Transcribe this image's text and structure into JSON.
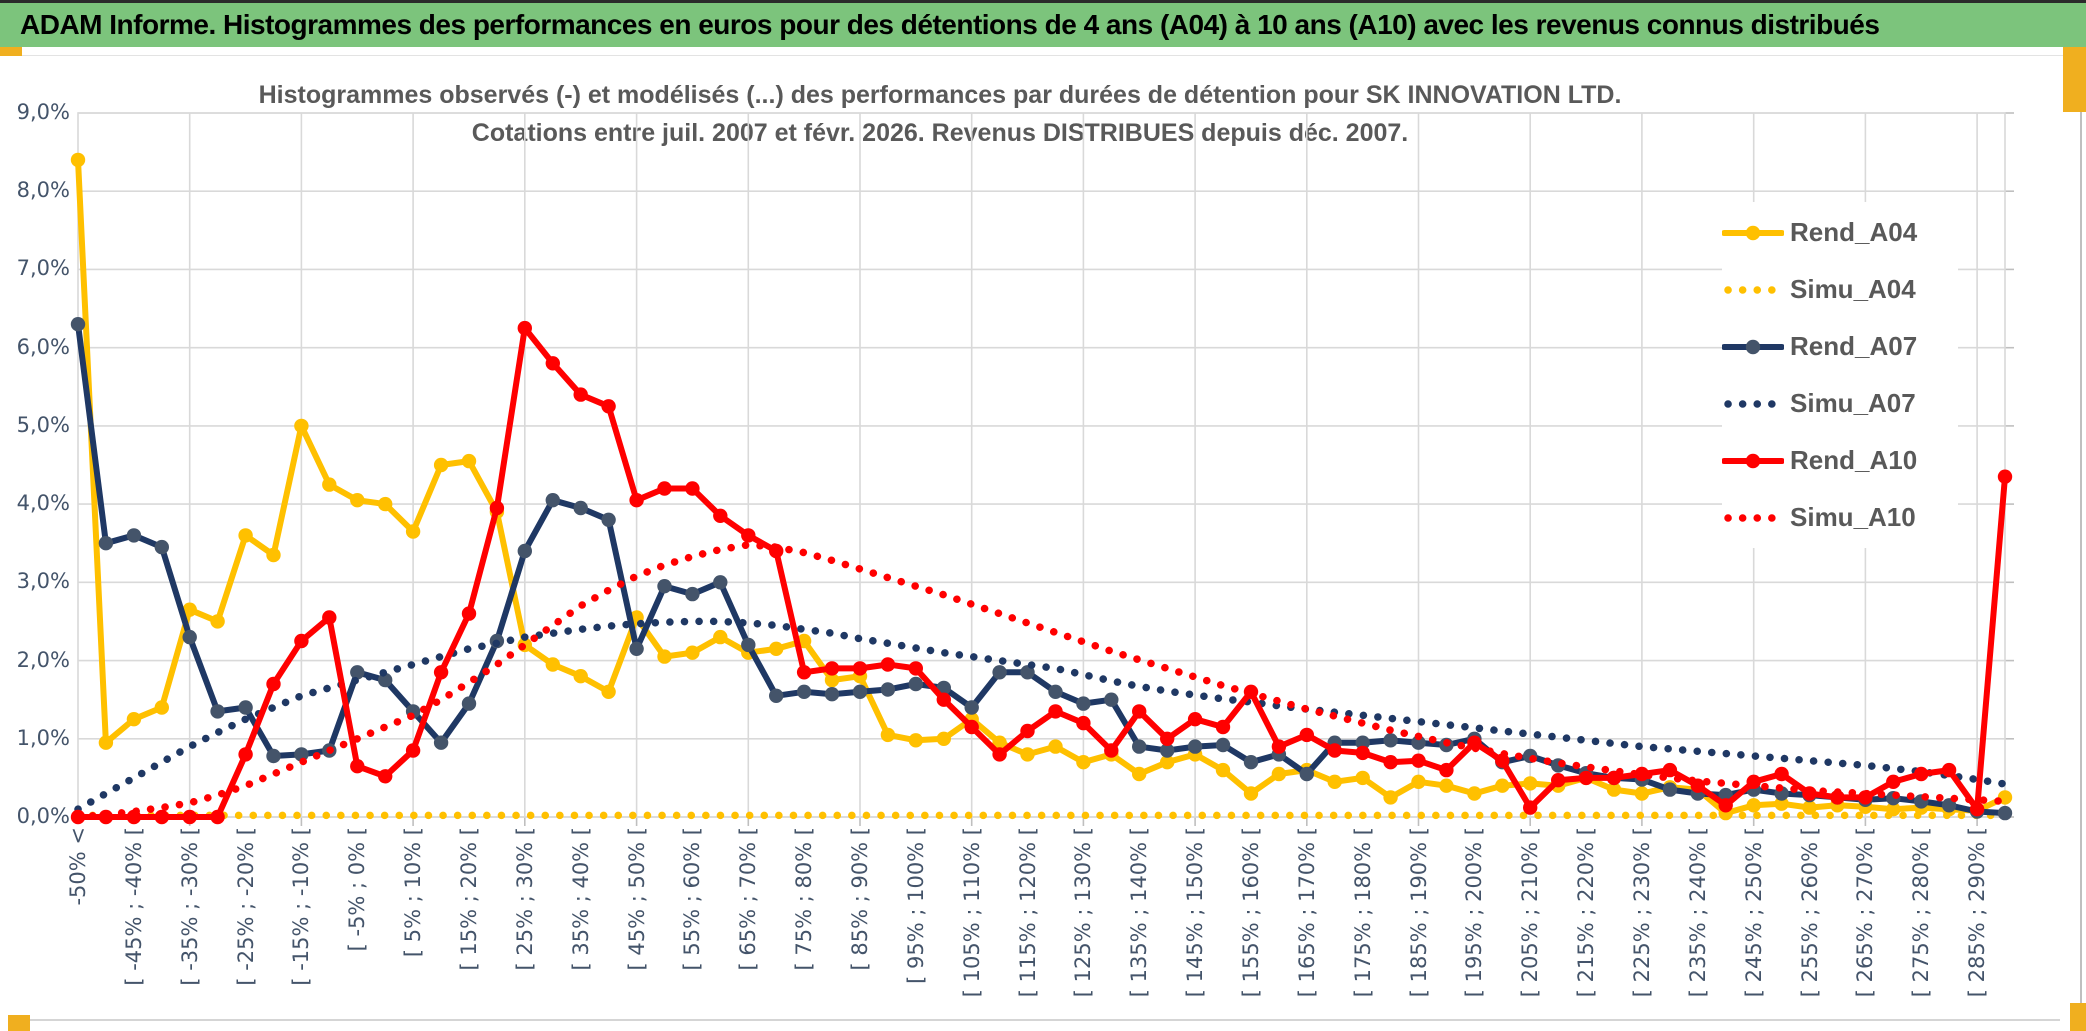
{
  "header": {
    "title": "ADAM Informe. Histogrammes des performances en euros pour des détentions de 4 ans (A04) à 10 ans (A10) avec les revenus connus distribués",
    "bg_color": "#7CC47C"
  },
  "accent_color": "#F0AF1F",
  "chart_data": {
    "type": "line",
    "title_line1": "Histogrammes observés (-) et modélisés (...) des performances par durées de détention pour SK INNOVATION LTD.",
    "title_line2": "Cotations entre juil. 2007 et févr. 2026. Revenus DISTRIBUES depuis déc. 2007.",
    "ylim": [
      0,
      9
    ],
    "ytick_labels": [
      "0,0%",
      "1,0%",
      "2,0%",
      "3,0%",
      "4,0%",
      "5,0%",
      "6,0%",
      "7,0%",
      "8,0%",
      "9,0%"
    ],
    "grid_color": "#D9D9D9",
    "axis_label_color": "#44546A",
    "legend_position": "right-inside",
    "categories": [
      "-50% <",
      "",
      "[ -45% ; -40% [",
      "",
      "[ -35% ; -30% [",
      "",
      "[ -25% ; -20% [",
      "",
      "[ -15% ; -10% [",
      "",
      "[ -5% ; 0% [",
      "",
      "[ 5% ; 10% [",
      "",
      "[ 15% ; 20% [",
      "",
      "[ 25% ; 30% [",
      "",
      "[ 35% ; 40% [",
      "",
      "[ 45% ; 50% [",
      "",
      "[ 55% ; 60% [",
      "",
      "[ 65% ; 70% [",
      "",
      "[ 75% ; 80% [",
      "",
      "[ 85% ; 90% [",
      "",
      "[ 95% ; 100% [",
      "",
      "[ 105% ; 110% [",
      "",
      "[ 115% ; 120% [",
      "",
      "[ 125% ; 130% [",
      "",
      "[ 135% ; 140% [",
      "",
      "[ 145% ; 150% [",
      "",
      "[ 155% ; 160% [",
      "",
      "[ 165% ; 170% [",
      "",
      "[ 175% ; 180% [",
      "",
      "[ 185% ; 190% [",
      "",
      "[ 195% ; 200% [",
      "",
      "[ 205% ; 210% [",
      "",
      "[ 215% ; 220% [",
      "",
      "[ 225% ; 230% [",
      "",
      "[ 235% ; 240% [",
      "",
      "[ 245% ; 250% [",
      "",
      "[ 255% ; 260% [",
      "",
      "[ 265% ; 270% [",
      "",
      "[ 275% ; 280% [",
      "",
      "[ 285% ; 290% [",
      ""
    ],
    "series": [
      {
        "name": "Rend_A04",
        "color": "#FFC000",
        "style": "solid",
        "marker": true,
        "marker_color": "#FFC000",
        "values": [
          8.4,
          0.95,
          1.25,
          1.4,
          2.65,
          2.5,
          3.6,
          3.35,
          5.0,
          4.25,
          4.05,
          4.0,
          3.65,
          4.5,
          4.55,
          3.9,
          2.2,
          1.95,
          1.8,
          1.6,
          2.55,
          2.05,
          2.1,
          2.3,
          2.1,
          2.15,
          2.25,
          1.75,
          1.8,
          1.05,
          0.98,
          1.0,
          1.25,
          0.95,
          0.8,
          0.9,
          0.7,
          0.8,
          0.55,
          0.7,
          0.8,
          0.6,
          0.3,
          0.55,
          0.6,
          0.45,
          0.5,
          0.25,
          0.45,
          0.4,
          0.3,
          0.4,
          0.43,
          0.4,
          0.5,
          0.35,
          0.3,
          0.38,
          0.35,
          0.05,
          0.15,
          0.17,
          0.12,
          0.15,
          0.13,
          0.1,
          0.12,
          0.1,
          0.08,
          0.25
        ]
      },
      {
        "name": "Simu_A04",
        "color": "#FFC000",
        "style": "dotted",
        "marker": false,
        "values": [
          0.02,
          0.02,
          0.02,
          0.02,
          0.02,
          0.02,
          0.02,
          0.02,
          0.02,
          0.02,
          0.02,
          0.02,
          0.02,
          0.02,
          0.02,
          0.02,
          0.02,
          0.02,
          0.02,
          0.02,
          0.02,
          0.02,
          0.02,
          0.02,
          0.02,
          0.02,
          0.02,
          0.02,
          0.02,
          0.02,
          0.02,
          0.02,
          0.02,
          0.02,
          0.02,
          0.02,
          0.02,
          0.02,
          0.02,
          0.02,
          0.02,
          0.02,
          0.02,
          0.02,
          0.02,
          0.02,
          0.02,
          0.02,
          0.02,
          0.02,
          0.02,
          0.02,
          0.02,
          0.02,
          0.02,
          0.02,
          0.02,
          0.02,
          0.02,
          0.02,
          0.02,
          0.02,
          0.02,
          0.02,
          0.02,
          0.02,
          0.02,
          0.02,
          0.02,
          0.02
        ]
      },
      {
        "name": "Rend_A07",
        "color": "#1F3864",
        "style": "solid",
        "marker": true,
        "marker_color": "#44546A",
        "values": [
          6.3,
          3.5,
          3.6,
          3.45,
          2.3,
          1.35,
          1.4,
          0.78,
          0.8,
          0.85,
          1.85,
          1.75,
          1.35,
          0.95,
          1.45,
          2.25,
          3.4,
          4.05,
          3.95,
          3.8,
          2.15,
          2.95,
          2.85,
          3.0,
          2.2,
          1.55,
          1.6,
          1.57,
          1.6,
          1.63,
          1.7,
          1.65,
          1.4,
          1.85,
          1.85,
          1.6,
          1.45,
          1.5,
          0.9,
          0.85,
          0.9,
          0.92,
          0.7,
          0.8,
          0.55,
          0.95,
          0.95,
          0.98,
          0.95,
          0.92,
          1.0,
          0.7,
          0.78,
          0.66,
          0.56,
          0.5,
          0.48,
          0.35,
          0.3,
          0.28,
          0.35,
          0.3,
          0.28,
          0.25,
          0.22,
          0.24,
          0.2,
          0.15,
          0.07,
          0.05
        ]
      },
      {
        "name": "Simu_A07",
        "color": "#1F3864",
        "style": "dotted",
        "marker": false,
        "values": [
          0.1,
          0.3,
          0.5,
          0.7,
          0.9,
          1.08,
          1.25,
          1.4,
          1.55,
          1.65,
          1.75,
          1.85,
          1.95,
          2.05,
          2.15,
          2.22,
          2.3,
          2.35,
          2.4,
          2.44,
          2.47,
          2.49,
          2.5,
          2.5,
          2.48,
          2.45,
          2.4,
          2.35,
          2.28,
          2.22,
          2.16,
          2.1,
          2.05,
          2.0,
          1.95,
          1.9,
          1.82,
          1.74,
          1.67,
          1.61,
          1.56,
          1.51,
          1.47,
          1.42,
          1.38,
          1.34,
          1.3,
          1.26,
          1.22,
          1.18,
          1.14,
          1.1,
          1.06,
          1.02,
          0.98,
          0.94,
          0.9,
          0.87,
          0.84,
          0.81,
          0.78,
          0.75,
          0.72,
          0.69,
          0.66,
          0.62,
          0.58,
          0.53,
          0.48,
          0.42
        ]
      },
      {
        "name": "Rend_A10",
        "color": "#FF0000",
        "style": "solid",
        "marker": true,
        "marker_color": "#FF0000",
        "values": [
          0,
          0,
          0,
          0,
          0,
          0,
          0.8,
          1.7,
          2.25,
          2.55,
          0.65,
          0.52,
          0.85,
          1.85,
          2.6,
          3.95,
          6.25,
          5.8,
          5.4,
          5.25,
          4.05,
          4.2,
          4.2,
          3.85,
          3.6,
          3.4,
          1.85,
          1.9,
          1.9,
          1.95,
          1.9,
          1.5,
          1.15,
          0.8,
          1.1,
          1.35,
          1.2,
          0.85,
          1.35,
          1.0,
          1.25,
          1.15,
          1.6,
          0.9,
          1.05,
          0.85,
          0.82,
          0.7,
          0.72,
          0.6,
          0.95,
          0.72,
          0.12,
          0.47,
          0.5,
          0.5,
          0.55,
          0.6,
          0.4,
          0.15,
          0.45,
          0.55,
          0.3,
          0.25,
          0.25,
          0.45,
          0.55,
          0.6,
          0.1,
          4.35
        ]
      },
      {
        "name": "Simu_A10",
        "color": "#FF0000",
        "style": "dotted",
        "marker": false,
        "values": [
          0.0,
          0.03,
          0.07,
          0.12,
          0.18,
          0.28,
          0.4,
          0.55,
          0.7,
          0.85,
          1.0,
          1.15,
          1.3,
          1.5,
          1.72,
          1.95,
          2.2,
          2.45,
          2.7,
          2.9,
          3.08,
          3.22,
          3.33,
          3.42,
          3.48,
          3.45,
          3.38,
          3.28,
          3.17,
          3.06,
          2.95,
          2.84,
          2.72,
          2.6,
          2.48,
          2.36,
          2.24,
          2.12,
          2.01,
          1.9,
          1.79,
          1.68,
          1.58,
          1.48,
          1.38,
          1.29,
          1.2,
          1.11,
          1.03,
          0.95,
          0.88,
          0.81,
          0.75,
          0.69,
          0.64,
          0.59,
          0.54,
          0.5,
          0.46,
          0.43,
          0.4,
          0.37,
          0.34,
          0.32,
          0.3,
          0.28,
          0.26,
          0.24,
          0.22,
          0.2
        ]
      }
    ],
    "legend_entries": [
      "Rend_A04",
      "Simu_A04",
      "Rend_A07",
      "Simu_A07",
      "Rend_A10",
      "Simu_A10"
    ]
  }
}
